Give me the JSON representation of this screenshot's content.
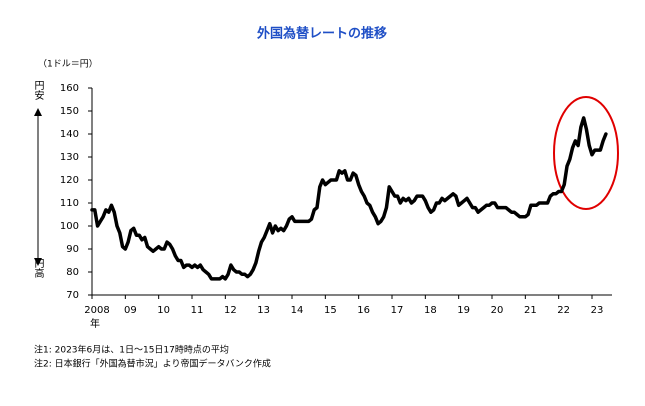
{
  "chart_data": {
    "type": "line",
    "title": "外国為替レートの推移",
    "y_unit": "（1ドル＝円）",
    "y_top_label": "円安",
    "y_bottom_label": "円高",
    "x_unit": "年",
    "notes": [
      "注1: 2023年6月は、1日～15日17時時点の平均",
      "注2: 日本銀行「外国為替市況」より帝国データバンク作成"
    ],
    "x": [
      "2008-01",
      "2008-02",
      "2008-03",
      "2008-04",
      "2008-05",
      "2008-06",
      "2008-07",
      "2008-08",
      "2008-09",
      "2008-10",
      "2008-11",
      "2008-12",
      "2009-01",
      "2009-02",
      "2009-03",
      "2009-04",
      "2009-05",
      "2009-06",
      "2009-07",
      "2009-08",
      "2009-09",
      "2009-10",
      "2009-11",
      "2009-12",
      "2010-01",
      "2010-02",
      "2010-03",
      "2010-04",
      "2010-05",
      "2010-06",
      "2010-07",
      "2010-08",
      "2010-09",
      "2010-10",
      "2010-11",
      "2010-12",
      "2011-01",
      "2011-02",
      "2011-03",
      "2011-04",
      "2011-05",
      "2011-06",
      "2011-07",
      "2011-08",
      "2011-09",
      "2011-10",
      "2011-11",
      "2011-12",
      "2012-01",
      "2012-02",
      "2012-03",
      "2012-04",
      "2012-05",
      "2012-06",
      "2012-07",
      "2012-08",
      "2012-09",
      "2012-10",
      "2012-11",
      "2012-12",
      "2013-01",
      "2013-02",
      "2013-03",
      "2013-04",
      "2013-05",
      "2013-06",
      "2013-07",
      "2013-08",
      "2013-09",
      "2013-10",
      "2013-11",
      "2013-12",
      "2014-01",
      "2014-02",
      "2014-03",
      "2014-04",
      "2014-05",
      "2014-06",
      "2014-07",
      "2014-08",
      "2014-09",
      "2014-10",
      "2014-11",
      "2014-12",
      "2015-01",
      "2015-02",
      "2015-03",
      "2015-04",
      "2015-05",
      "2015-06",
      "2015-07",
      "2015-08",
      "2015-09",
      "2015-10",
      "2015-11",
      "2015-12",
      "2016-01",
      "2016-02",
      "2016-03",
      "2016-04",
      "2016-05",
      "2016-06",
      "2016-07",
      "2016-08",
      "2016-09",
      "2016-10",
      "2016-11",
      "2016-12",
      "2017-01",
      "2017-02",
      "2017-03",
      "2017-04",
      "2017-05",
      "2017-06",
      "2017-07",
      "2017-08",
      "2017-09",
      "2017-10",
      "2017-11",
      "2017-12",
      "2018-01",
      "2018-02",
      "2018-03",
      "2018-04",
      "2018-05",
      "2018-06",
      "2018-07",
      "2018-08",
      "2018-09",
      "2018-10",
      "2018-11",
      "2018-12",
      "2019-01",
      "2019-02",
      "2019-03",
      "2019-04",
      "2019-05",
      "2019-06",
      "2019-07",
      "2019-08",
      "2019-09",
      "2019-10",
      "2019-11",
      "2019-12",
      "2020-01",
      "2020-02",
      "2020-03",
      "2020-04",
      "2020-05",
      "2020-06",
      "2020-07",
      "2020-08",
      "2020-09",
      "2020-10",
      "2020-11",
      "2020-12",
      "2021-01",
      "2021-02",
      "2021-03",
      "2021-04",
      "2021-05",
      "2021-06",
      "2021-07",
      "2021-08",
      "2021-09",
      "2021-10",
      "2021-11",
      "2021-12",
      "2022-01",
      "2022-02",
      "2022-03",
      "2022-04",
      "2022-05",
      "2022-06",
      "2022-07",
      "2022-08",
      "2022-09",
      "2022-10",
      "2022-11",
      "2022-12",
      "2023-01",
      "2023-02",
      "2023-03",
      "2023-04",
      "2023-05",
      "2023-06"
    ],
    "series": [
      {
        "color": "#000000",
        "values": [
          107,
          107,
          100,
          102,
          104,
          107,
          106,
          109,
          106,
          100,
          97,
          91,
          90,
          93,
          98,
          99,
          96,
          96,
          94,
          95,
          91,
          90,
          89,
          90,
          91,
          90,
          90,
          93,
          92,
          90,
          87,
          85,
          85,
          82,
          83,
          83,
          82,
          83,
          82,
          83,
          81,
          80,
          79,
          77,
          77,
          77,
          77,
          78,
          77,
          79,
          83,
          81,
          80,
          80,
          79,
          79,
          78,
          79,
          81,
          84,
          89,
          93,
          95,
          98,
          101,
          97,
          100,
          98,
          99,
          98,
          100,
          103,
          104,
          102,
          102,
          102,
          102,
          102,
          102,
          103,
          107,
          108,
          117,
          120,
          118,
          119,
          120,
          120,
          120,
          124,
          123,
          124,
          120,
          120,
          123,
          122,
          118,
          115,
          113,
          110,
          109,
          106,
          104,
          101,
          102,
          104,
          108,
          117,
          115,
          113,
          113,
          110,
          112,
          111,
          112,
          110,
          111,
          113,
          113,
          113,
          111,
          108,
          106,
          107,
          110,
          110,
          112,
          111,
          112,
          113,
          114,
          113,
          109,
          110,
          111,
          112,
          110,
          108,
          108,
          106,
          107,
          108,
          109,
          109,
          110,
          110,
          108,
          108,
          108,
          108,
          107,
          106,
          106,
          105,
          104,
          104,
          104,
          105,
          109,
          109,
          109,
          110,
          110,
          110,
          110,
          113,
          114,
          114,
          115,
          115,
          118,
          126,
          129,
          134,
          137,
          135,
          143,
          147,
          142,
          135,
          131,
          133,
          133,
          133,
          137,
          140
        ]
      }
    ],
    "xlim": [
      2008,
      2023.6
    ],
    "xticks": [
      {
        "value": 2008,
        "label": "2008"
      },
      {
        "value": 2009,
        "label": "09"
      },
      {
        "value": 2010,
        "label": "10"
      },
      {
        "value": 2011,
        "label": "11"
      },
      {
        "value": 2012,
        "label": "12"
      },
      {
        "value": 2013,
        "label": "13"
      },
      {
        "value": 2014,
        "label": "14"
      },
      {
        "value": 2015,
        "label": "15"
      },
      {
        "value": 2016,
        "label": "16"
      },
      {
        "value": 2017,
        "label": "17"
      },
      {
        "value": 2018,
        "label": "18"
      },
      {
        "value": 2019,
        "label": "19"
      },
      {
        "value": 2020,
        "label": "20"
      },
      {
        "value": 2021,
        "label": "21"
      },
      {
        "value": 2022,
        "label": "22"
      },
      {
        "value": 2023,
        "label": "23"
      }
    ],
    "ylim": [
      70,
      160
    ],
    "yticks": [
      70,
      80,
      90,
      100,
      110,
      120,
      130,
      140,
      150,
      160
    ],
    "grid": false
  }
}
